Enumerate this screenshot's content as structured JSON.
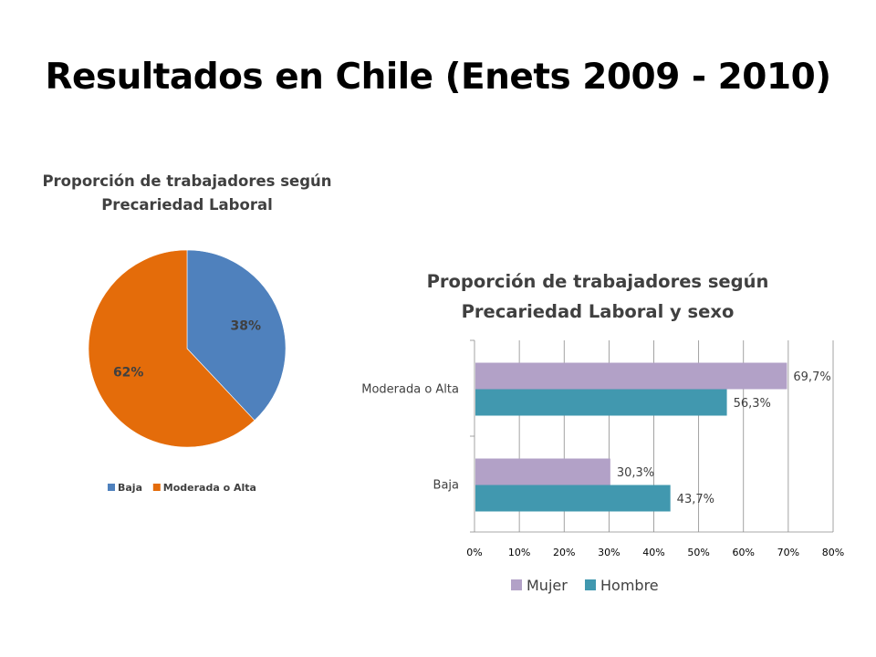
{
  "slide": {
    "title": "Resultados en Chile (Enets 2009 - 2010)"
  },
  "chart_data": [
    {
      "type": "pie",
      "title_line1": "Proporción de trabajadores según",
      "title_line2": "Precariedad Laboral",
      "categories": [
        "Baja",
        "Moderada o Alta"
      ],
      "values": [
        38,
        62
      ],
      "data_labels": [
        "38%",
        "62%"
      ],
      "colors": [
        "#4F81BD",
        "#E46C0A"
      ],
      "legend": "bottom"
    },
    {
      "type": "bar",
      "orientation": "horizontal",
      "title_line1": "Proporción de trabajadores según",
      "title_line2": "Precariedad Laboral y sexo",
      "categories": [
        "Moderada o Alta",
        "Baja"
      ],
      "series": [
        {
          "name": "Mujer",
          "values": [
            69.7,
            30.3
          ],
          "labels": [
            "69,7%",
            "30,3%"
          ],
          "color": "#B2A1C7"
        },
        {
          "name": "Hombre",
          "values": [
            56.3,
            43.7
          ],
          "labels": [
            "56,3%",
            "43,7%"
          ],
          "color": "#4198AF"
        }
      ],
      "xlim": [
        0,
        80
      ],
      "xticks": [
        "0%",
        "10%",
        "20%",
        "30%",
        "40%",
        "50%",
        "60%",
        "70%",
        "80%"
      ],
      "grid": true,
      "legend": "bottom"
    }
  ]
}
